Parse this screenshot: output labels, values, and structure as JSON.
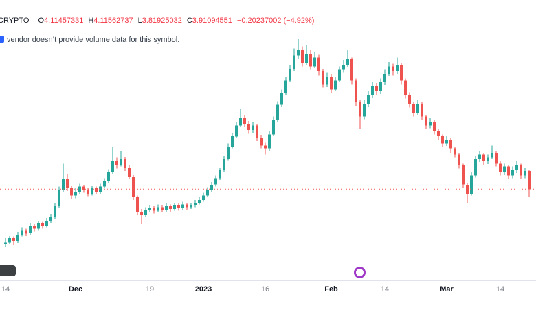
{
  "header": {
    "symbol_fragment": "CRYPTO",
    "ohlc": [
      {
        "label": "O",
        "value": "4.11457331"
      },
      {
        "label": "H",
        "value": "4.11562737"
      },
      {
        "label": "L",
        "value": "3.81925032"
      },
      {
        "label": "C",
        "value": "3.91094551"
      }
    ],
    "change": "−0.20237002 (−4.92%)",
    "value_color": "#f23645"
  },
  "notice": {
    "text": "vendor doesn’t provide volume data for this symbol."
  },
  "icons": {
    "info_icon": "blue square info marker (cropped at left edge)",
    "watermark_logo": "dark rounded logo fragment (cropped, bottom-left)",
    "purple_ring": "purple circle outline decoration"
  },
  "chart_data": {
    "type": "candlestick",
    "frequency": "daily",
    "start_date": "2022-11-14",
    "ylim": [
      3.2,
      5.62
    ],
    "price_line": 3.91094551,
    "grid": false,
    "legend_position": "top-left",
    "colors": {
      "up": "#26a69a",
      "down": "#ef5350",
      "price_line": "#ef5350"
    },
    "x_ticks": [
      {
        "label": "14",
        "index": 0,
        "major": false
      },
      {
        "label": "Dec",
        "index": 17,
        "major": true
      },
      {
        "label": "19",
        "index": 35,
        "major": false
      },
      {
        "label": "2023",
        "index": 48,
        "major": true
      },
      {
        "label": "16",
        "index": 63,
        "major": false
      },
      {
        "label": "Feb",
        "index": 79,
        "major": true
      },
      {
        "label": "14",
        "index": 92,
        "major": false
      },
      {
        "label": "Mar",
        "index": 107,
        "major": true
      },
      {
        "label": "14",
        "index": 120,
        "major": false
      }
    ],
    "candles": [
      [
        3.3,
        3.36,
        3.27,
        3.32
      ],
      [
        3.32,
        3.39,
        3.3,
        3.36
      ],
      [
        3.36,
        3.38,
        3.29,
        3.33
      ],
      [
        3.33,
        3.43,
        3.31,
        3.4
      ],
      [
        3.4,
        3.48,
        3.38,
        3.45
      ],
      [
        3.45,
        3.47,
        3.39,
        3.42
      ],
      [
        3.42,
        3.53,
        3.4,
        3.5
      ],
      [
        3.5,
        3.52,
        3.44,
        3.47
      ],
      [
        3.47,
        3.56,
        3.45,
        3.53
      ],
      [
        3.53,
        3.55,
        3.47,
        3.5
      ],
      [
        3.5,
        3.59,
        3.48,
        3.56
      ],
      [
        3.56,
        3.63,
        3.53,
        3.6
      ],
      [
        3.6,
        3.75,
        3.58,
        3.72
      ],
      [
        3.72,
        3.94,
        3.7,
        3.9
      ],
      [
        3.9,
        4.2,
        3.88,
        4.02
      ],
      [
        4.02,
        4.08,
        3.89,
        3.92
      ],
      [
        3.92,
        3.95,
        3.8,
        3.84
      ],
      [
        3.84,
        3.92,
        3.81,
        3.88
      ],
      [
        3.88,
        3.97,
        3.86,
        3.94
      ],
      [
        3.94,
        3.96,
        3.87,
        3.9
      ],
      [
        3.9,
        3.92,
        3.83,
        3.86
      ],
      [
        3.86,
        3.95,
        3.84,
        3.92
      ],
      [
        3.92,
        3.94,
        3.85,
        3.88
      ],
      [
        3.88,
        3.97,
        3.86,
        3.94
      ],
      [
        3.94,
        4.03,
        3.92,
        4.0
      ],
      [
        4.0,
        4.13,
        3.98,
        4.1
      ],
      [
        4.1,
        4.38,
        4.08,
        4.22
      ],
      [
        4.22,
        4.26,
        4.14,
        4.18
      ],
      [
        4.18,
        4.34,
        4.16,
        4.24
      ],
      [
        4.24,
        4.27,
        4.11,
        4.15
      ],
      [
        4.15,
        4.18,
        4.02,
        4.05
      ],
      [
        4.05,
        4.07,
        3.79,
        3.82
      ],
      [
        3.82,
        3.84,
        3.62,
        3.66
      ],
      [
        3.66,
        3.69,
        3.52,
        3.62
      ],
      [
        3.62,
        3.71,
        3.6,
        3.68
      ],
      [
        3.68,
        3.73,
        3.65,
        3.7
      ],
      [
        3.7,
        3.72,
        3.64,
        3.67
      ],
      [
        3.67,
        3.74,
        3.65,
        3.71
      ],
      [
        3.71,
        3.73,
        3.65,
        3.68
      ],
      [
        3.68,
        3.75,
        3.66,
        3.72
      ],
      [
        3.72,
        3.74,
        3.66,
        3.69
      ],
      [
        3.69,
        3.76,
        3.67,
        3.73
      ],
      [
        3.73,
        3.75,
        3.67,
        3.7
      ],
      [
        3.7,
        3.77,
        3.68,
        3.74
      ],
      [
        3.74,
        3.76,
        3.68,
        3.71
      ],
      [
        3.71,
        3.76,
        3.69,
        3.73
      ],
      [
        3.73,
        3.79,
        3.71,
        3.76
      ],
      [
        3.76,
        3.82,
        3.74,
        3.79
      ],
      [
        3.79,
        3.87,
        3.77,
        3.84
      ],
      [
        3.84,
        3.93,
        3.82,
        3.9
      ],
      [
        3.9,
        3.99,
        3.88,
        3.96
      ],
      [
        3.96,
        4.06,
        3.94,
        4.03
      ],
      [
        4.03,
        4.15,
        4.01,
        4.12
      ],
      [
        4.12,
        4.28,
        4.1,
        4.25
      ],
      [
        4.25,
        4.42,
        4.23,
        4.38
      ],
      [
        4.38,
        4.54,
        4.36,
        4.5
      ],
      [
        4.5,
        4.66,
        4.48,
        4.62
      ],
      [
        4.62,
        4.8,
        4.6,
        4.7
      ],
      [
        4.7,
        4.73,
        4.6,
        4.64
      ],
      [
        4.64,
        4.67,
        4.53,
        4.57
      ],
      [
        4.57,
        4.66,
        4.54,
        4.62
      ],
      [
        4.62,
        4.64,
        4.45,
        4.48
      ],
      [
        4.48,
        4.51,
        4.36,
        4.4
      ],
      [
        4.4,
        4.43,
        4.3,
        4.36
      ],
      [
        4.36,
        4.56,
        4.34,
        4.52
      ],
      [
        4.52,
        4.72,
        4.5,
        4.68
      ],
      [
        4.68,
        4.89,
        4.66,
        4.85
      ],
      [
        4.85,
        5.02,
        4.83,
        4.98
      ],
      [
        4.98,
        5.16,
        4.96,
        5.12
      ],
      [
        5.12,
        5.3,
        5.1,
        5.25
      ],
      [
        5.25,
        5.48,
        5.23,
        5.4
      ],
      [
        5.4,
        5.58,
        5.36,
        5.46
      ],
      [
        5.46,
        5.5,
        5.28,
        5.32
      ],
      [
        5.32,
        5.52,
        5.3,
        5.42
      ],
      [
        5.42,
        5.46,
        5.24,
        5.28
      ],
      [
        5.28,
        5.44,
        5.26,
        5.38
      ],
      [
        5.38,
        5.41,
        5.18,
        5.22
      ],
      [
        5.22,
        5.25,
        5.04,
        5.08
      ],
      [
        5.08,
        5.21,
        5.05,
        5.16
      ],
      [
        5.16,
        5.19,
        4.98,
        5.02
      ],
      [
        5.02,
        5.16,
        5.0,
        5.12
      ],
      [
        5.12,
        5.28,
        5.1,
        5.24
      ],
      [
        5.24,
        5.35,
        5.21,
        5.3
      ],
      [
        5.3,
        5.46,
        5.27,
        5.36
      ],
      [
        5.36,
        5.38,
        5.08,
        5.12
      ],
      [
        5.12,
        5.14,
        4.84,
        4.88
      ],
      [
        4.88,
        4.9,
        4.58,
        4.72
      ],
      [
        4.72,
        4.9,
        4.69,
        4.86
      ],
      [
        4.86,
        5.0,
        4.83,
        4.96
      ],
      [
        4.96,
        5.1,
        4.93,
        5.06
      ],
      [
        5.06,
        5.09,
        4.96,
        5.0
      ],
      [
        5.0,
        5.14,
        4.97,
        5.1
      ],
      [
        5.1,
        5.24,
        5.07,
        5.2
      ],
      [
        5.2,
        5.33,
        5.17,
        5.28
      ],
      [
        5.28,
        5.31,
        5.18,
        5.22
      ],
      [
        5.22,
        5.38,
        5.2,
        5.3
      ],
      [
        5.3,
        5.32,
        5.08,
        5.12
      ],
      [
        5.12,
        5.14,
        4.92,
        4.96
      ],
      [
        4.96,
        4.99,
        4.82,
        4.86
      ],
      [
        4.86,
        4.88,
        4.72,
        4.76
      ],
      [
        4.76,
        4.9,
        4.74,
        4.86
      ],
      [
        4.86,
        4.88,
        4.68,
        4.72
      ],
      [
        4.72,
        4.74,
        4.58,
        4.62
      ],
      [
        4.62,
        4.7,
        4.59,
        4.66
      ],
      [
        4.66,
        4.68,
        4.52,
        4.56
      ],
      [
        4.56,
        4.58,
        4.46,
        4.5
      ],
      [
        4.5,
        4.52,
        4.38,
        4.42
      ],
      [
        4.42,
        4.5,
        4.39,
        4.46
      ],
      [
        4.46,
        4.48,
        4.32,
        4.36
      ],
      [
        4.36,
        4.38,
        4.26,
        4.3
      ],
      [
        4.3,
        4.32,
        4.14,
        4.18
      ],
      [
        4.18,
        4.2,
        3.92,
        3.96
      ],
      [
        3.96,
        3.98,
        3.76,
        3.86
      ],
      [
        3.86,
        4.1,
        3.84,
        4.06
      ],
      [
        4.06,
        4.28,
        4.04,
        4.24
      ],
      [
        4.24,
        4.34,
        4.21,
        4.3
      ],
      [
        4.3,
        4.32,
        4.18,
        4.22
      ],
      [
        4.22,
        4.3,
        4.19,
        4.26
      ],
      [
        4.26,
        4.4,
        4.24,
        4.32
      ],
      [
        4.32,
        4.34,
        4.16,
        4.2
      ],
      [
        4.2,
        4.22,
        4.06,
        4.1
      ],
      [
        4.1,
        4.2,
        4.07,
        4.16
      ],
      [
        4.16,
        4.18,
        4.02,
        4.06
      ],
      [
        4.06,
        4.16,
        4.03,
        4.12
      ],
      [
        4.12,
        4.22,
        4.09,
        4.18
      ],
      [
        4.18,
        4.2,
        4.02,
        4.06
      ],
      [
        4.06,
        4.15,
        4.03,
        4.11
      ],
      [
        4.11,
        4.12,
        3.82,
        3.91
      ]
    ]
  }
}
